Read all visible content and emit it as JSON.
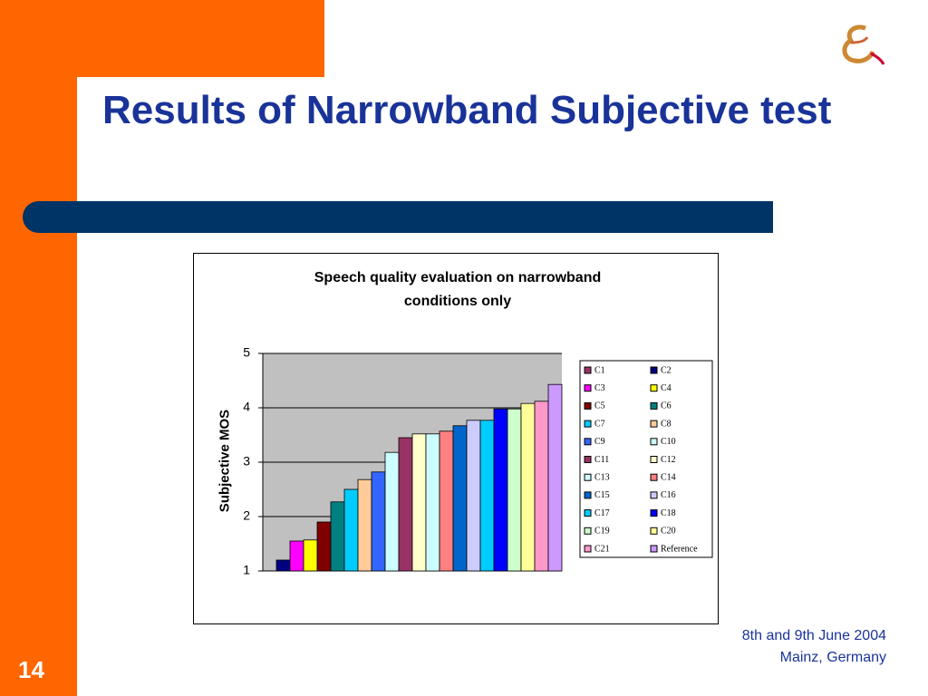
{
  "slide": {
    "title": "Results of Narrowband Subjective test",
    "footer": [
      "8th and 9th June 2004",
      "Mainz, Germany"
    ],
    "page_number": "14"
  },
  "chart_data": {
    "type": "bar",
    "title": "Speech quality evaluation on narrowband conditions only",
    "y_label": "Subjective MOS",
    "categories": [
      null
    ],
    "ylim": [
      1,
      5
    ],
    "yticks": [
      1,
      2,
      3,
      4,
      5
    ],
    "grid": true,
    "legend": "right",
    "series": [
      {
        "name": "C1",
        "color": "#993366",
        "values": [
          1
        ]
      },
      {
        "name": "C2",
        "color": "#000080",
        "values": [
          1.2
        ]
      },
      {
        "name": "C3",
        "color": "#ff00ff",
        "values": [
          1.55
        ]
      },
      {
        "name": "C4",
        "color": "#ffff00",
        "values": [
          1.57
        ]
      },
      {
        "name": "C5",
        "color": "#800000",
        "values": [
          1.9
        ]
      },
      {
        "name": "C6",
        "color": "#008080",
        "values": [
          2.27
        ]
      },
      {
        "name": "C7",
        "color": "#00ccff",
        "values": [
          2.5
        ]
      },
      {
        "name": "C8",
        "color": "#ffcc99",
        "values": [
          2.68
        ]
      },
      {
        "name": "C9",
        "color": "#3366ff",
        "values": [
          2.82
        ]
      },
      {
        "name": "C10",
        "color": "#ccffff",
        "values": [
          3.18
        ]
      },
      {
        "name": "C11",
        "color": "#993366",
        "values": [
          3.45
        ]
      },
      {
        "name": "C12",
        "color": "#ffffcc",
        "values": [
          3.52
        ]
      },
      {
        "name": "C13",
        "color": "#ccffff",
        "values": [
          3.52
        ]
      },
      {
        "name": "C14",
        "color": "#ff8080",
        "values": [
          3.57
        ]
      },
      {
        "name": "C15",
        "color": "#0066cc",
        "values": [
          3.67
        ]
      },
      {
        "name": "C16",
        "color": "#ccccff",
        "values": [
          3.77
        ]
      },
      {
        "name": "C17",
        "color": "#00ccff",
        "values": [
          3.77
        ]
      },
      {
        "name": "C18",
        "color": "#0000ff",
        "values": [
          3.98
        ]
      },
      {
        "name": "C19",
        "color": "#ccffcc",
        "values": [
          3.98
        ]
      },
      {
        "name": "C20",
        "color": "#ffff99",
        "values": [
          4.08
        ]
      },
      {
        "name": "C21",
        "color": "#ff99cc",
        "values": [
          4.12
        ]
      },
      {
        "name": "Reference",
        "color": "#cc99ff",
        "values": [
          4.43
        ]
      }
    ]
  }
}
